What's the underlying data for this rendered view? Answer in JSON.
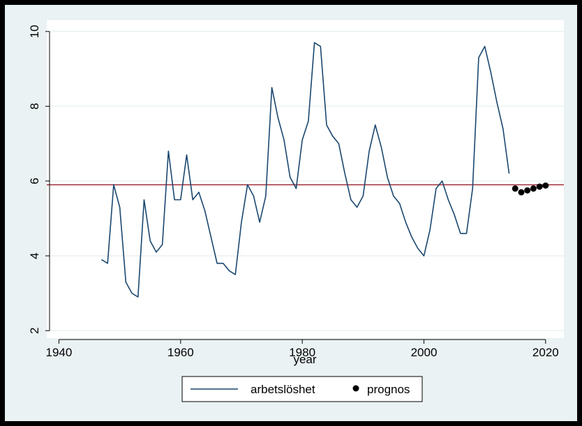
{
  "chart_data": {
    "type": "line",
    "title": "",
    "xlabel": "year",
    "ylabel": "",
    "xlim": [
      1938,
      2023
    ],
    "ylim": [
      1.8,
      10.3
    ],
    "xticks": [
      1940,
      1960,
      1980,
      2000,
      2020
    ],
    "yticks": [
      2,
      4,
      6,
      8,
      10
    ],
    "grid": true,
    "legend_position": "bottom",
    "reference_line": {
      "y": 5.9,
      "color": "#a0303c"
    },
    "series": [
      {
        "name": "arbetslöshet",
        "type": "line",
        "color": "#1a476f",
        "x": [
          1947,
          1948,
          1949,
          1950,
          1951,
          1952,
          1953,
          1954,
          1955,
          1956,
          1957,
          1958,
          1959,
          1960,
          1961,
          1962,
          1963,
          1964,
          1965,
          1966,
          1967,
          1968,
          1969,
          1970,
          1971,
          1972,
          1973,
          1974,
          1975,
          1976,
          1977,
          1978,
          1979,
          1980,
          1981,
          1982,
          1983,
          1984,
          1985,
          1986,
          1987,
          1988,
          1989,
          1990,
          1991,
          1992,
          1993,
          1994,
          1995,
          1996,
          1997,
          1998,
          1999,
          2000,
          2001,
          2002,
          2003,
          2004,
          2005,
          2006,
          2007,
          2008,
          2009,
          2010,
          2011,
          2012,
          2013,
          2014
        ],
        "y": [
          3.9,
          3.8,
          5.9,
          5.3,
          3.3,
          3.0,
          2.9,
          5.5,
          4.4,
          4.1,
          4.3,
          6.8,
          5.5,
          5.5,
          6.7,
          5.5,
          5.7,
          5.2,
          4.5,
          3.8,
          3.8,
          3.6,
          3.5,
          4.9,
          5.9,
          5.6,
          4.9,
          5.6,
          8.5,
          7.7,
          7.1,
          6.1,
          5.8,
          7.1,
          7.6,
          9.7,
          9.6,
          7.5,
          7.2,
          7.0,
          6.2,
          5.5,
          5.3,
          5.6,
          6.8,
          7.5,
          6.9,
          6.1,
          5.6,
          5.4,
          4.9,
          4.5,
          4.2,
          4.0,
          4.7,
          5.8,
          6.0,
          5.5,
          5.1,
          4.6,
          4.6,
          5.8,
          9.3,
          9.6,
          8.9,
          8.1,
          7.4,
          6.2
        ]
      },
      {
        "name": "prognos",
        "type": "scatter",
        "color": "#000000",
        "x": [
          2015,
          2016,
          2017,
          2018,
          2019,
          2020
        ],
        "y": [
          5.8,
          5.7,
          5.75,
          5.8,
          5.85,
          5.88
        ]
      }
    ]
  }
}
